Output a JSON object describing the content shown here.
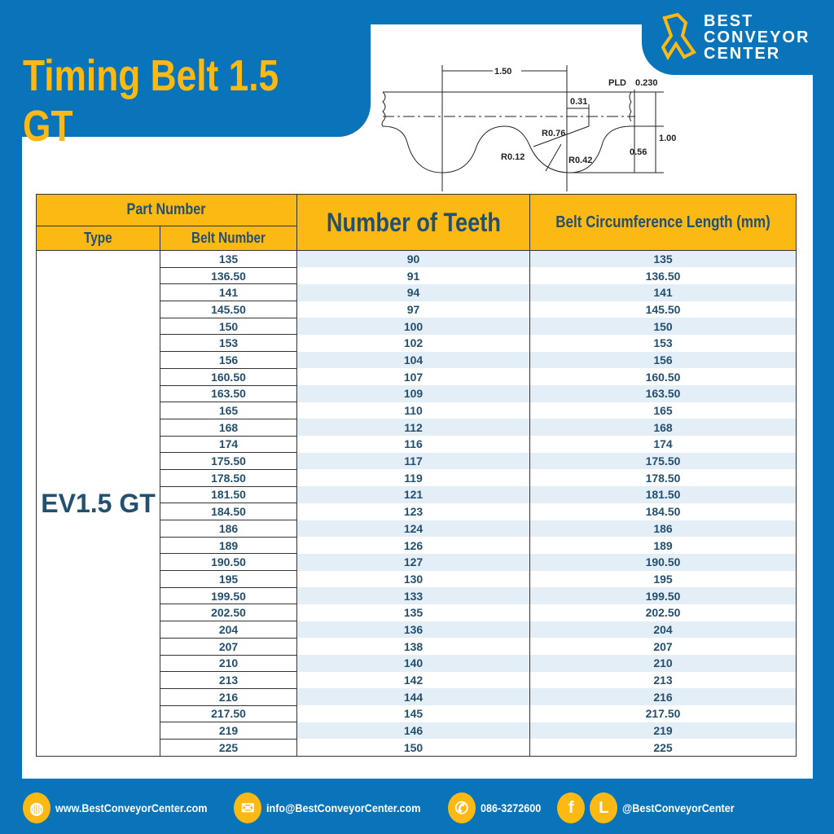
{
  "title": "Timing Belt 1.5 GT",
  "brand": {
    "line1": "BEST",
    "line2": "CONVEYOR",
    "line3": "CENTER"
  },
  "diagram": {
    "pitch": "1.50",
    "pld_label": "PLD",
    "pld": "0.230",
    "d031": "0.31",
    "r076": "R0.76",
    "r012": "R0.12",
    "r042": "R0.42",
    "h100": "1.00",
    "h056": "0.56"
  },
  "table": {
    "headers": {
      "part_number": "Part Number",
      "type": "Type",
      "belt_number": "Belt Number",
      "teeth": "Number of Teeth",
      "length": "Belt Circumference Length (mm)"
    },
    "type_value": "EV1.5 GT",
    "rows": [
      [
        "135",
        "90",
        "135"
      ],
      [
        "136.50",
        "91",
        "136.50"
      ],
      [
        "141",
        "94",
        "141"
      ],
      [
        "145.50",
        "97",
        "145.50"
      ],
      [
        "150",
        "100",
        "150"
      ],
      [
        "153",
        "102",
        "153"
      ],
      [
        "156",
        "104",
        "156"
      ],
      [
        "160.50",
        "107",
        "160.50"
      ],
      [
        "163.50",
        "109",
        "163.50"
      ],
      [
        "165",
        "110",
        "165"
      ],
      [
        "168",
        "112",
        "168"
      ],
      [
        "174",
        "116",
        "174"
      ],
      [
        "175.50",
        "117",
        "175.50"
      ],
      [
        "178.50",
        "119",
        "178.50"
      ],
      [
        "181.50",
        "121",
        "181.50"
      ],
      [
        "184.50",
        "123",
        "184.50"
      ],
      [
        "186",
        "124",
        "186"
      ],
      [
        "189",
        "126",
        "189"
      ],
      [
        "190.50",
        "127",
        "190.50"
      ],
      [
        "195",
        "130",
        "195"
      ],
      [
        "199.50",
        "133",
        "199.50"
      ],
      [
        "202.50",
        "135",
        "202.50"
      ],
      [
        "204",
        "136",
        "204"
      ],
      [
        "207",
        "138",
        "207"
      ],
      [
        "210",
        "140",
        "210"
      ],
      [
        "213",
        "142",
        "213"
      ],
      [
        "216",
        "144",
        "216"
      ],
      [
        "217.50",
        "145",
        "217.50"
      ],
      [
        "219",
        "146",
        "219"
      ],
      [
        "225",
        "150",
        "225"
      ]
    ]
  },
  "footer": {
    "website": "www.BestConveyorCenter.com",
    "email": "info@BestConveyorCenter.com",
    "phone": "086-3272600",
    "social": "@BestConveyorCenter",
    "facebook_glyph": "f",
    "line_glyph": "L"
  },
  "colors": {
    "blue": "#0a74bb",
    "yellow": "#fdb913",
    "text": "#24506f"
  }
}
